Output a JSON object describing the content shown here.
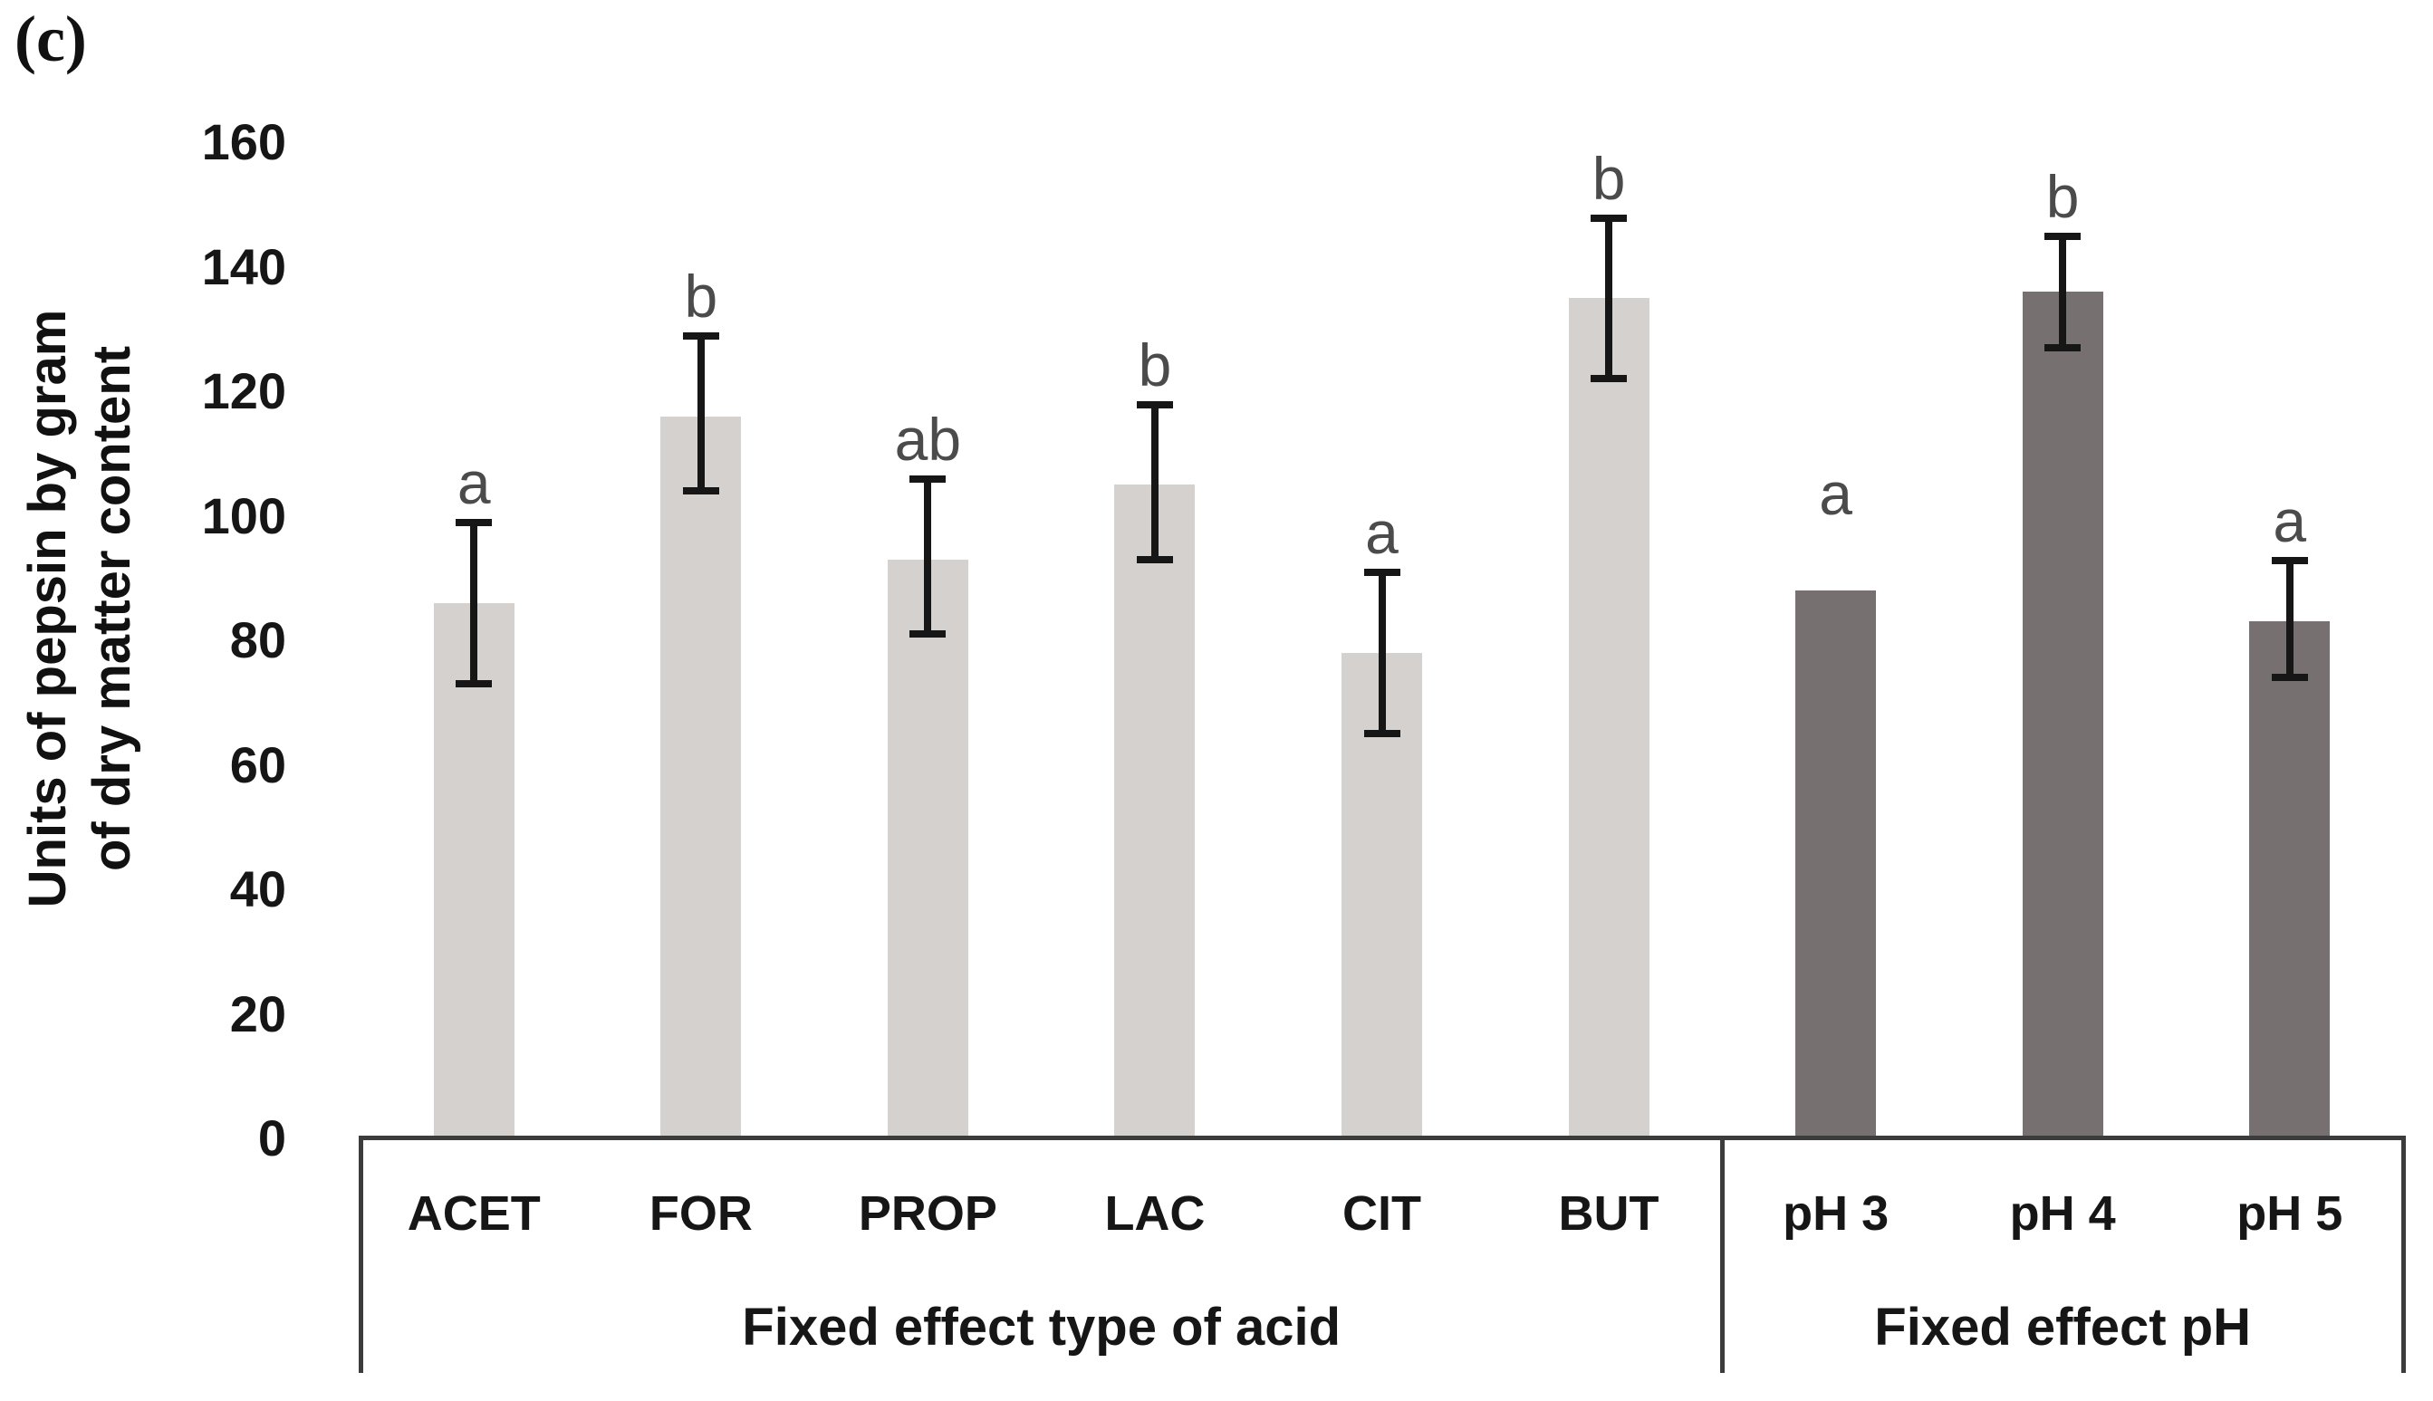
{
  "panel_label": "(c)",
  "y_axis": {
    "title_line1": "Units of pepsin by gram",
    "title_line2": "of dry matter content"
  },
  "chart_data": {
    "type": "bar",
    "title": "",
    "xlabel": "",
    "ylabel": "Units of pepsin by gram of dry matter content",
    "ylim": [
      0,
      160
    ],
    "ytick_step": 20,
    "grid": false,
    "legend_position": "none",
    "yticks": [
      "160",
      "140",
      "120",
      "100",
      "80",
      "60",
      "40",
      "20",
      "0"
    ],
    "groups": [
      {
        "label": "Fixed effect type of acid",
        "bar_color": "#d4d1ce"
      },
      {
        "label": "Fixed effect pH",
        "bar_color": "#767170"
      }
    ],
    "bars": [
      {
        "category": "ACET",
        "group": 0,
        "value": 86,
        "err_lo": 73,
        "err_hi": 99,
        "letter": "a"
      },
      {
        "category": "FOR",
        "group": 0,
        "value": 116,
        "err_lo": 104,
        "err_hi": 129,
        "letter": "b"
      },
      {
        "category": "PROP",
        "group": 0,
        "value": 93,
        "err_lo": 81,
        "err_hi": 106,
        "letter": "ab"
      },
      {
        "category": "LAC",
        "group": 0,
        "value": 105,
        "err_lo": 93,
        "err_hi": 118,
        "letter": "b"
      },
      {
        "category": "CIT",
        "group": 0,
        "value": 78,
        "err_lo": 65,
        "err_hi": 91,
        "letter": "a"
      },
      {
        "category": "BUT",
        "group": 0,
        "value": 135,
        "err_lo": 122,
        "err_hi": 148,
        "letter": "b"
      },
      {
        "category": "pH 3",
        "group": 1,
        "value": 88,
        "err_lo": null,
        "err_hi": null,
        "letter": "a"
      },
      {
        "category": "pH 4",
        "group": 1,
        "value": 136,
        "err_lo": 127,
        "err_hi": 145,
        "letter": "b"
      },
      {
        "category": "pH 5",
        "group": 1,
        "value": 83,
        "err_lo": 74,
        "err_hi": 93,
        "letter": "a"
      }
    ],
    "colors": {
      "axis_line": "#3c3c3c",
      "error_bar": "#161616",
      "label_text": "#161616",
      "letter_text": "#4b4b4b",
      "light_bar": "#d4d1ce",
      "dark_bar": "#767170"
    }
  }
}
